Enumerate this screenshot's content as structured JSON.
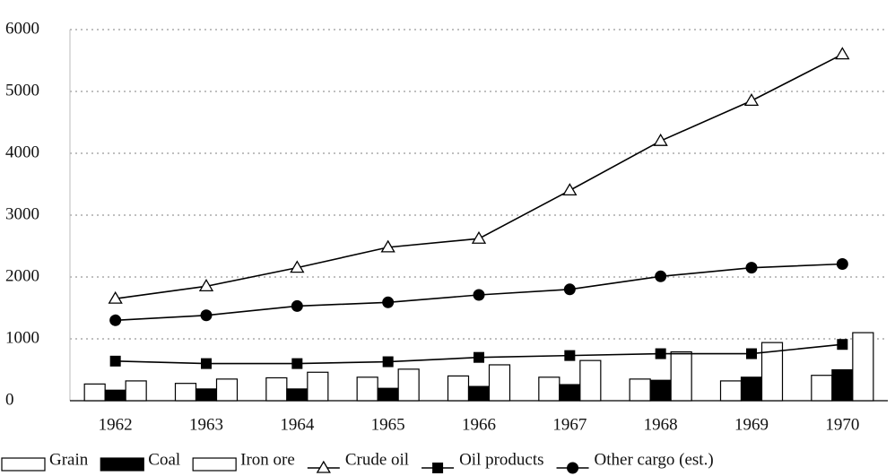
{
  "chart_data": {
    "type": "combo",
    "categories": [
      "1962",
      "1963",
      "1964",
      "1965",
      "1966",
      "1967",
      "1968",
      "1969",
      "1970"
    ],
    "ylim": [
      0,
      6000
    ],
    "yticks": [
      0,
      1000,
      2000,
      3000,
      4000,
      5000,
      6000
    ],
    "grid": true,
    "series": [
      {
        "name": "Grain",
        "type": "bar",
        "color": "#ffffff",
        "values": [
          270,
          280,
          370,
          380,
          400,
          380,
          350,
          320,
          410
        ]
      },
      {
        "name": "Coal",
        "type": "bar",
        "color": "#000000",
        "values": [
          170,
          190,
          190,
          200,
          230,
          260,
          330,
          380,
          500
        ]
      },
      {
        "name": "Iron ore",
        "type": "bar",
        "color": "#ffffff",
        "values": [
          320,
          350,
          460,
          510,
          580,
          650,
          790,
          940,
          1100
        ]
      },
      {
        "name": "Crude oil",
        "type": "line",
        "marker": "triangle",
        "color": "#000000",
        "values": [
          1650,
          1850,
          2150,
          2480,
          2620,
          3400,
          4200,
          4850,
          5600
        ]
      },
      {
        "name": "Oil products",
        "type": "line",
        "marker": "square",
        "color": "#000000",
        "values": [
          640,
          600,
          600,
          630,
          700,
          730,
          760,
          760,
          910
        ]
      },
      {
        "name": "Other cargo (est.)",
        "type": "line",
        "marker": "circle",
        "color": "#000000",
        "values": [
          1300,
          1380,
          1530,
          1590,
          1710,
          1800,
          2010,
          2150,
          2210
        ]
      }
    ]
  }
}
